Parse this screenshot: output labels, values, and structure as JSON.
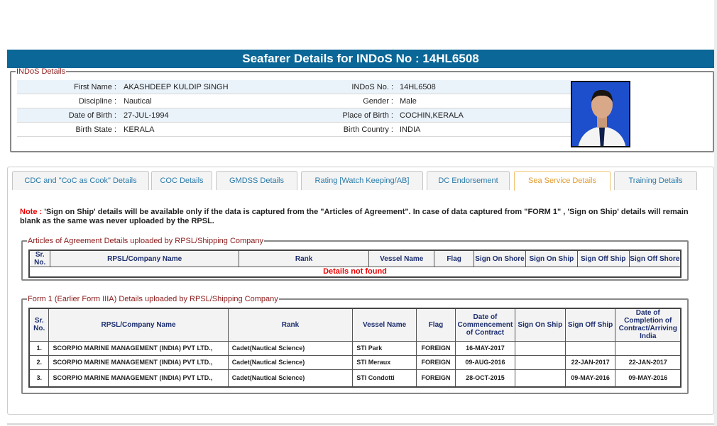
{
  "header": {
    "title": "Seafarer Details for INDoS No : 14HL6508"
  },
  "indos": {
    "legend": "INDoS Details",
    "rows": [
      {
        "l1": "First Name :",
        "v1": "AKASHDEEP KULDIP SINGH",
        "l2": "INDoS No. :",
        "v2": "14HL6508"
      },
      {
        "l1": "Discipline :",
        "v1": "Nautical",
        "l2": "Gender :",
        "v2": "Male"
      },
      {
        "l1": "Date of Birth :",
        "v1": "27-JUL-1994",
        "l2": "Place of Birth :",
        "v2": "COCHIN,KERALA"
      },
      {
        "l1": "Birth State :",
        "v1": "KERALA",
        "l2": "Birth Country :",
        "v2": "INDIA"
      }
    ]
  },
  "tabs": [
    {
      "label": "CDC and \"CoC as Cook\" Details"
    },
    {
      "label": "COC Details"
    },
    {
      "label": "GMDSS Details"
    },
    {
      "label": "Rating [Watch Keeping/AB]"
    },
    {
      "label": "DC Endorsement"
    },
    {
      "label": "Sea Service Details",
      "active": true
    },
    {
      "label": "Training Details"
    }
  ],
  "note": {
    "label": "Note :",
    "text": " 'Sign on Ship' details will be available only if the data is captured from the \"Articles of Agreement\". In case of data captured from \"FORM 1\" , 'Sign on Ship' details will remain blank as the same was never uploaded by the RPSL."
  },
  "articles": {
    "legend": "Articles of Agreement Details uploaded by RPSL/Shipping Company",
    "headers": [
      "Sr. No.",
      "RPSL/Company Name",
      "Rank",
      "Vessel Name",
      "Flag",
      "Sign On Shore",
      "Sign On Ship",
      "Sign Off Ship",
      "Sign Off Shore"
    ],
    "empty": "Details not found"
  },
  "form1": {
    "legend": "Form 1 (Earlier Form IIIA) Details uploaded by RPSL/Shipping Company",
    "headers": [
      "Sr. No.",
      "RPSL/Company Name",
      "Rank",
      "Vessel Name",
      "Flag",
      "Date of Commencement of Contract",
      "Sign On Ship",
      "Sign Off Ship",
      "Date of Completion of Contract/Arriving India"
    ],
    "rows": [
      [
        "1.",
        "SCORPIO MARINE MANAGEMENT (INDIA) PVT LTD.,",
        "Cadet(Nautical Science)",
        "STI Park",
        "FOREIGN",
        "16-MAY-2017",
        "",
        "",
        ""
      ],
      [
        "2.",
        "SCORPIO MARINE MANAGEMENT (INDIA) PVT LTD.,",
        "Cadet(Nautical Science)",
        "STI Meraux",
        "FOREIGN",
        "09-AUG-2016",
        "",
        "22-JAN-2017",
        "22-JAN-2017"
      ],
      [
        "3.",
        "SCORPIO MARINE MANAGEMENT (INDIA) PVT LTD.,",
        "Cadet(Nautical Science)",
        "STI Condotti",
        "FOREIGN",
        "28-OCT-2015",
        "",
        "09-MAY-2016",
        "09-MAY-2016"
      ]
    ]
  },
  "colors": {
    "header": "#0b6797",
    "legend": "#8b1a1a",
    "active_tab": "#e29a2c",
    "tab_text": "#2a7aa8",
    "alert": "#ee0000"
  }
}
